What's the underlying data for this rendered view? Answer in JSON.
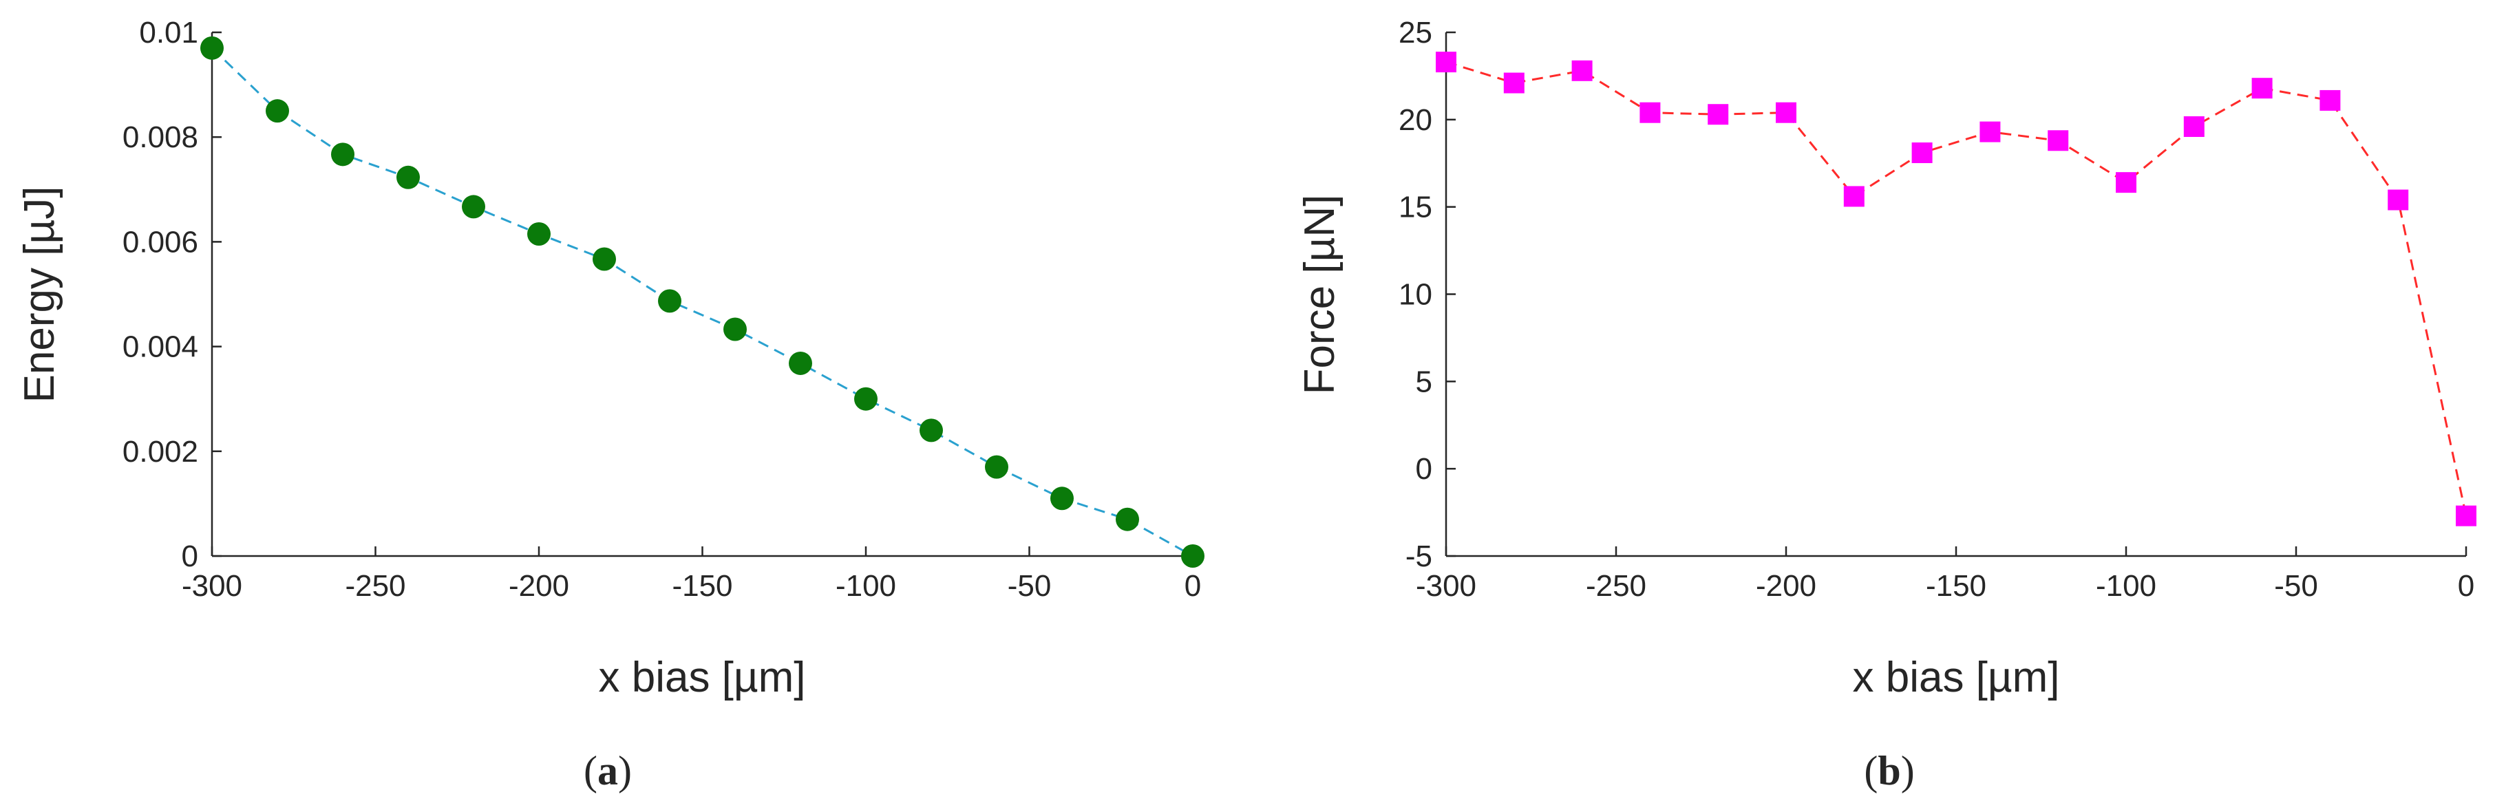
{
  "chart_data": [
    {
      "type": "line",
      "panel_label": "a",
      "xlabel": "x bias [µm]",
      "ylabel": "Energy [µJ]",
      "xlim": [
        -300,
        0
      ],
      "ylim": [
        0,
        0.01
      ],
      "xticks": [
        -300,
        -250,
        -200,
        -150,
        -100,
        -50,
        0
      ],
      "xtick_labels": [
        "-300",
        "-250",
        "-200",
        "-150",
        "-100",
        "-50",
        "0"
      ],
      "yticks": [
        0,
        0.002,
        0.004,
        0.006,
        0.008,
        0.01
      ],
      "ytick_labels": [
        "0",
        "0.002",
        "0.004",
        "0.006",
        "0.008",
        "0.01"
      ],
      "grid": false,
      "series": [
        {
          "x": [
            -300,
            -280,
            -260,
            -240,
            -220,
            -200,
            -180,
            -160,
            -140,
            -120,
            -100,
            -80,
            -60,
            -40,
            -20,
            0
          ],
          "y": [
            0.0097,
            0.0085,
            0.00767,
            0.00723,
            0.00667,
            0.00615,
            0.00567,
            0.00487,
            0.00433,
            0.00368,
            0.003,
            0.0024,
            0.0017,
            0.0011,
            0.0007,
            0.0
          ],
          "marker": "circle",
          "marker_color": "#0a7a0a",
          "line_color": "#2aa1cf",
          "line_style": "dashed"
        }
      ]
    },
    {
      "type": "line",
      "panel_label": "b",
      "xlabel": "x bias [µm]",
      "ylabel": "Force [µN]",
      "xlim": [
        -300,
        0
      ],
      "ylim": [
        -5,
        25
      ],
      "xticks": [
        -300,
        -250,
        -200,
        -150,
        -100,
        -50,
        0
      ],
      "xtick_labels": [
        "-300",
        "-250",
        "-200",
        "-150",
        "-100",
        "-50",
        "0"
      ],
      "yticks": [
        -5,
        0,
        5,
        10,
        15,
        20,
        25
      ],
      "ytick_labels": [
        "-5",
        "0",
        "5",
        "10",
        "15",
        "20",
        "25"
      ],
      "grid": false,
      "series": [
        {
          "x": [
            -300,
            -280,
            -260,
            -240,
            -220,
            -200,
            -180,
            -160,
            -140,
            -120,
            -100,
            -80,
            -60,
            -40,
            -20,
            0
          ],
          "y": [
            23.3,
            22.1,
            22.8,
            20.4,
            20.3,
            20.4,
            15.6,
            18.1,
            19.3,
            18.8,
            16.4,
            19.6,
            21.8,
            21.1,
            15.4,
            -2.7
          ],
          "marker": "square",
          "marker_color": "#ff00ff",
          "line_color": "#ff2a2a",
          "line_style": "dashed"
        }
      ]
    }
  ]
}
